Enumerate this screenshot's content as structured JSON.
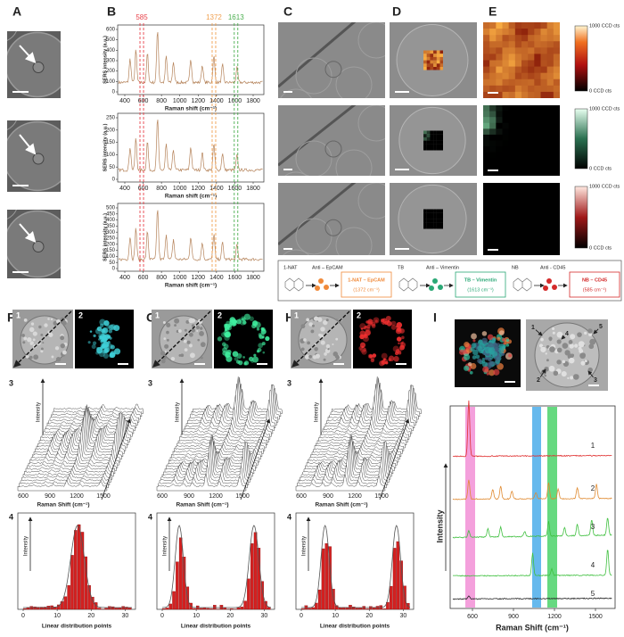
{
  "A": {
    "label": "A"
  },
  "B": {
    "label": "B",
    "y_label": "SERS intensity (a.u.)",
    "x_label": "Raman shift (cm⁻¹)",
    "xticks": [
      400,
      600,
      800,
      1000,
      1200,
      1400,
      1600,
      1800
    ],
    "plots": [
      {
        "yticks": [
          0,
          100,
          200,
          300,
          400,
          500,
          600
        ]
      },
      {
        "yticks": [
          0,
          50,
          100,
          150,
          200,
          250
        ]
      },
      {
        "yticks": [
          0,
          50,
          100,
          150,
          200,
          250,
          300,
          350,
          400,
          450,
          500
        ]
      }
    ],
    "peaks": [
      {
        "value": 585,
        "color": "#e8424a"
      },
      {
        "value": 1372,
        "color": "#f0a050"
      },
      {
        "value": 1613,
        "color": "#4caf50"
      }
    ]
  },
  "C": {
    "label": "C"
  },
  "D": {
    "label": "D"
  },
  "E": {
    "label": "E",
    "colorbar_max": "1000 CCD cts",
    "colorbar_min": "0 CCD cts"
  },
  "legend": {
    "items": [
      {
        "reporter": "1-NAT",
        "antibody": "Anti – EpCAM",
        "conjugate": "1-NAT – EpCAM",
        "shift": "(1372 cm⁻¹)",
        "color": "#f08a3a"
      },
      {
        "reporter": "TB",
        "antibody": "Anti – Vimentin",
        "conjugate": "TB – Vimentin",
        "shift": "(1613 cm⁻¹)",
        "color": "#2aa876"
      },
      {
        "reporter": "NB",
        "antibody": "Anti - CD45",
        "conjugate": "NB – CD45",
        "shift": "(585 cm⁻¹)",
        "color": "#d42a2a"
      }
    ]
  },
  "cells": {
    "sublabels": [
      "1",
      "2",
      "3",
      "4"
    ],
    "waterfall": {
      "y_label": "Intensity",
      "x_label": "Raman Shift (cm⁻¹)",
      "xticks": [
        600,
        900,
        1200,
        1500
      ]
    },
    "histogram": {
      "y_label": "Intensity",
      "x_label": "Linear distribution points",
      "xticks": [
        0,
        10,
        20,
        30
      ]
    },
    "panels": [
      {
        "label": "F"
      },
      {
        "label": "G"
      },
      {
        "label": "H"
      }
    ]
  },
  "I": {
    "label": "I",
    "image_marks": [
      "1",
      "2",
      "3",
      "4",
      "5"
    ],
    "y_label": "Intensity",
    "x_label": "Raman Shift (cm⁻¹)",
    "xticks": [
      600,
      900,
      1200,
      1500
    ],
    "spectra": [
      {
        "label": "1",
        "color": "#e03030"
      },
      {
        "label": "2",
        "color": "#e08a30"
      },
      {
        "label": "3",
        "color": "#40c040"
      },
      {
        "label": "4",
        "color": "#40c040"
      },
      {
        "label": "5",
        "color": "#222222"
      }
    ]
  }
}
